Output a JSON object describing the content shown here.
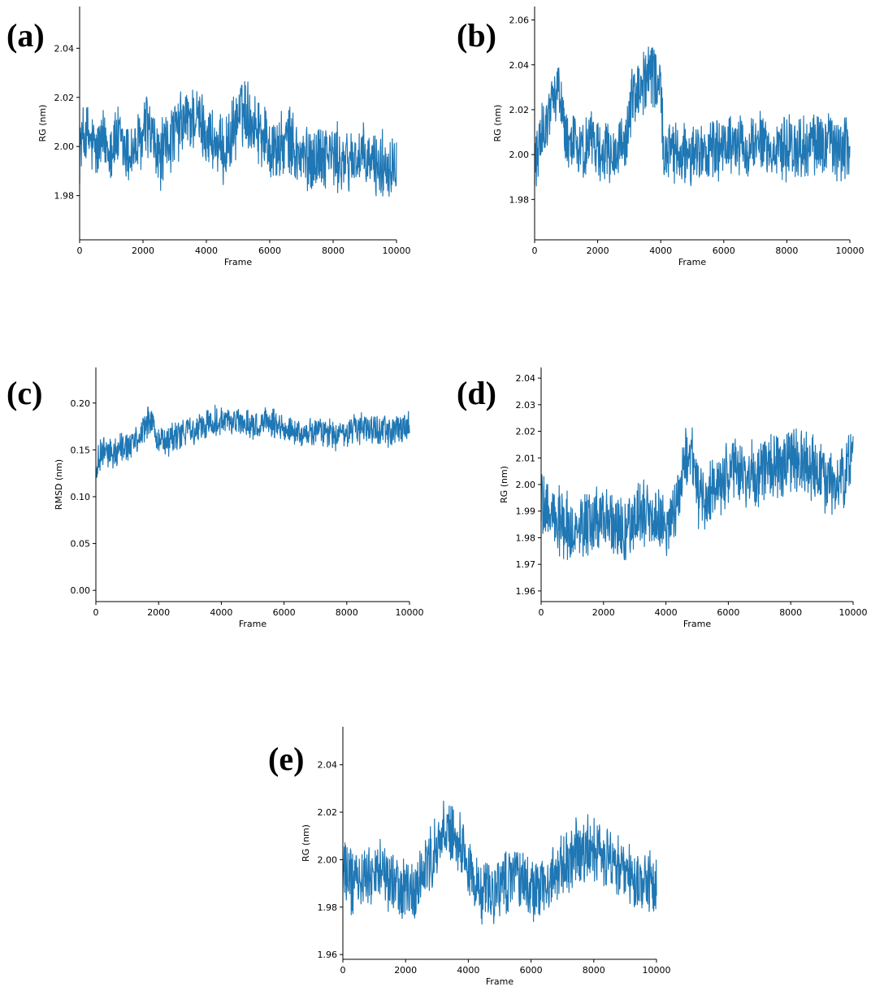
{
  "chart_data": [
    {
      "id": "a",
      "panel_label": "(a)",
      "type": "line",
      "xlabel": "Frame",
      "ylabel": "RG (nm)",
      "xlim": [
        0,
        10000
      ],
      "ylim": [
        1.962,
        2.057
      ],
      "xticks": [
        "0",
        "2000",
        "4000",
        "6000",
        "8000",
        "10000"
      ],
      "yticks": [
        "1.98",
        "2.00",
        "2.02",
        "2.04"
      ],
      "color": "#1f77b4",
      "series": [
        {
          "x": [
            0,
            200,
            500,
            800,
            1000,
            1200,
            1500,
            1800,
            2000,
            2100,
            2300,
            2500,
            2700,
            3000,
            3300,
            3600,
            3900,
            4200,
            4500,
            4800,
            5000,
            5200,
            5500,
            5800,
            6000,
            6300,
            6600,
            6900,
            7200,
            7500,
            7800,
            8100,
            8400,
            8700,
            9000,
            9300,
            9600,
            10000
          ],
          "y": [
            2.0,
            2.005,
            1.998,
            2.002,
            2.0,
            2.003,
            1.997,
            1.999,
            2.003,
            2.01,
            2.002,
            1.995,
            2.0,
            2.005,
            2.01,
            2.012,
            2.008,
            2.002,
            1.997,
            2.004,
            2.012,
            2.015,
            2.01,
            2.005,
            2.0,
            1.998,
            2.003,
            1.996,
            1.995,
            1.996,
            1.998,
            1.995,
            1.993,
            1.996,
            1.994,
            1.993,
            1.992,
            1.995
          ],
          "noise": 0.012
        }
      ]
    },
    {
      "id": "b",
      "panel_label": "(b)",
      "type": "line",
      "xlabel": "Frame",
      "ylabel": "RG (nm)",
      "xlim": [
        0,
        10000
      ],
      "ylim": [
        1.962,
        2.066
      ],
      "xticks": [
        "0",
        "2000",
        "4000",
        "6000",
        "8000",
        "10000"
      ],
      "yticks": [
        "1.98",
        "2.00",
        "2.02",
        "2.04",
        "2.06"
      ],
      "color": "#1f77b4",
      "series": [
        {
          "x": [
            0,
            200,
            500,
            800,
            1000,
            1200,
            1500,
            1800,
            2000,
            2300,
            2600,
            2900,
            3100,
            3400,
            3700,
            4000,
            4100,
            4400,
            4800,
            5200,
            5600,
            6000,
            6400,
            6800,
            7200,
            7600,
            8000,
            8400,
            8800,
            9200,
            9600,
            10000
          ],
          "y": [
            1.995,
            2.01,
            2.02,
            2.03,
            2.005,
            2.01,
            2.0,
            2.008,
            2.003,
            2.0,
            2.002,
            2.005,
            2.025,
            2.03,
            2.035,
            2.03,
            2.0,
            2.0,
            2.002,
            2.0,
            2.003,
            2.002,
            2.004,
            2.003,
            2.005,
            2.002,
            2.003,
            2.002,
            2.004,
            2.005,
            2.003,
            2.002
          ],
          "noise": 0.012
        }
      ]
    },
    {
      "id": "c",
      "panel_label": "(c)",
      "type": "line",
      "xlabel": "Frame",
      "ylabel": "RMSD (nm)",
      "xlim": [
        0,
        10000
      ],
      "ylim": [
        -0.012,
        0.238
      ],
      "xticks": [
        "0",
        "2000",
        "4000",
        "6000",
        "8000",
        "10000"
      ],
      "yticks": [
        "0.00",
        "0.05",
        "0.10",
        "0.15",
        "0.20"
      ],
      "color": "#1f77b4",
      "series": [
        {
          "x": [
            0,
            200,
            500,
            800,
            1100,
            1400,
            1700,
            2000,
            2300,
            2600,
            3000,
            3400,
            3800,
            4200,
            4600,
            5000,
            5400,
            5800,
            6200,
            6600,
            7000,
            7400,
            7800,
            8200,
            8600,
            9000,
            9400,
            9800,
            10000
          ],
          "y": [
            0.13,
            0.15,
            0.145,
            0.155,
            0.155,
            0.16,
            0.185,
            0.16,
            0.16,
            0.165,
            0.17,
            0.175,
            0.18,
            0.18,
            0.18,
            0.175,
            0.18,
            0.175,
            0.172,
            0.165,
            0.17,
            0.168,
            0.165,
            0.17,
            0.175,
            0.17,
            0.17,
            0.175,
            0.18
          ],
          "noise": 0.014
        }
      ]
    },
    {
      "id": "d",
      "panel_label": "(d)",
      "type": "line",
      "xlabel": "Frame",
      "ylabel": "RG (nm)",
      "xlim": [
        0,
        10000
      ],
      "ylim": [
        1.956,
        2.044
      ],
      "xticks": [
        "0",
        "2000",
        "4000",
        "6000",
        "8000",
        "10000"
      ],
      "yticks": [
        "1.96",
        "1.97",
        "1.98",
        "1.99",
        "2.00",
        "2.01",
        "2.02",
        "2.03",
        "2.04"
      ],
      "color": "#1f77b4",
      "series": [
        {
          "x": [
            0,
            300,
            700,
            1100,
            1500,
            1900,
            2300,
            2700,
            3100,
            3500,
            3900,
            4300,
            4600,
            4800,
            5000,
            5300,
            5700,
            6100,
            6500,
            6900,
            7300,
            7700,
            8100,
            8500,
            8900,
            9300,
            9700,
            10000
          ],
          "y": [
            1.995,
            1.99,
            1.985,
            1.982,
            1.985,
            1.987,
            1.985,
            1.983,
            1.99,
            1.988,
            1.985,
            1.99,
            2.01,
            2.015,
            1.998,
            1.995,
            2.0,
            2.003,
            2.005,
            2.003,
            2.01,
            2.005,
            2.01,
            2.008,
            2.003,
            2.0,
            2.005,
            2.01
          ],
          "noise": 0.011
        }
      ]
    },
    {
      "id": "e",
      "panel_label": "(e)",
      "type": "line",
      "xlabel": "Frame",
      "ylabel": "RG (nm)",
      "xlim": [
        0,
        10000
      ],
      "ylim": [
        1.958,
        2.056
      ],
      "xticks": [
        "0",
        "2000",
        "4000",
        "6000",
        "8000",
        "10000"
      ],
      "yticks": [
        "1.96",
        "1.98",
        "2.00",
        "2.02",
        "2.04"
      ],
      "color": "#1f77b4",
      "series": [
        {
          "x": [
            0,
            300,
            700,
            1100,
            1500,
            1900,
            2300,
            2700,
            3000,
            3300,
            3600,
            3900,
            4200,
            4600,
            5000,
            5400,
            5800,
            6200,
            6600,
            7000,
            7400,
            7800,
            8200,
            8600,
            9000,
            9400,
            9800,
            10000
          ],
          "y": [
            1.998,
            1.99,
            1.992,
            1.995,
            1.99,
            1.988,
            1.985,
            2.0,
            2.005,
            2.012,
            2.008,
            2.0,
            1.99,
            1.985,
            1.988,
            1.992,
            1.99,
            1.988,
            1.992,
            1.998,
            2.003,
            2.005,
            2.003,
            2.0,
            1.995,
            1.99,
            1.992,
            1.988
          ],
          "noise": 0.012
        }
      ]
    }
  ]
}
